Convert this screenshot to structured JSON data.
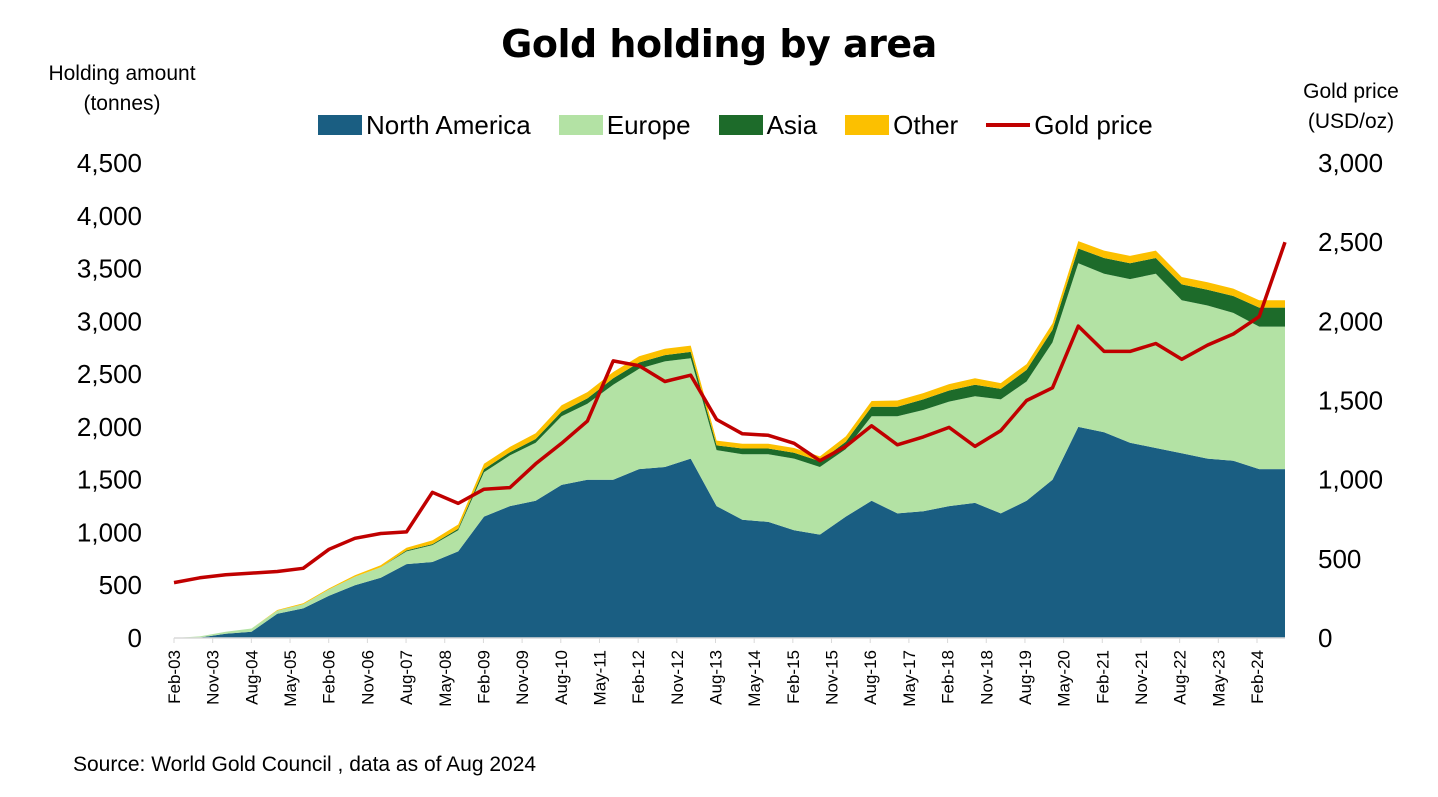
{
  "title": "Gold holding by area",
  "left_axis_title": "Holding amount\n(tonnes)",
  "right_axis_title": "Gold price\n(USD/oz)",
  "source": "Source: World Gold Council , data as of Aug 2024",
  "colors": {
    "north_america": "#1a5e82",
    "europe": "#b3e2a4",
    "asia": "#1d6b2a",
    "other": "#fcc000",
    "gold_price": "#c00000",
    "axis": "#d9d9d9"
  },
  "chart_data": {
    "type": "area",
    "title": "Gold holding by area",
    "ylabel": "Holding amount (tonnes)",
    "y2label": "Gold price (USD/oz)",
    "ylim": [
      0,
      4500
    ],
    "y2lim": [
      0,
      3000
    ],
    "yticks": [
      "0",
      "500",
      "1,000",
      "1,500",
      "2,000",
      "2,500",
      "3,000",
      "3,500",
      "4,000",
      "4,500"
    ],
    "y2ticks": [
      "0",
      "500",
      "1,000",
      "1,500",
      "2,000",
      "2,500",
      "3,000"
    ],
    "xticks": [
      "Feb-03",
      "Nov-03",
      "Aug-04",
      "May-05",
      "Feb-06",
      "Nov-06",
      "Aug-07",
      "May-08",
      "Feb-09",
      "Nov-09",
      "Aug-10",
      "May-11",
      "Feb-12",
      "Nov-12",
      "Aug-13",
      "May-14",
      "Feb-15",
      "Nov-15",
      "Aug-16",
      "May-17",
      "Feb-18",
      "Nov-18",
      "Aug-19",
      "May-20",
      "Feb-21",
      "Nov-21",
      "Aug-22",
      "May-23",
      "Feb-24"
    ],
    "x": [
      "Feb-03",
      "Aug-03",
      "Feb-04",
      "Aug-04",
      "Feb-05",
      "Aug-05",
      "Feb-06",
      "Aug-06",
      "Feb-07",
      "Aug-07",
      "Feb-08",
      "Aug-08",
      "Feb-09",
      "Aug-09",
      "Feb-10",
      "Aug-10",
      "Feb-11",
      "Aug-11",
      "Feb-12",
      "Aug-12",
      "Feb-13",
      "Aug-13",
      "Feb-14",
      "Aug-14",
      "Feb-15",
      "Aug-15",
      "Feb-16",
      "Aug-16",
      "Feb-17",
      "Aug-17",
      "Feb-18",
      "Aug-18",
      "Feb-19",
      "Aug-19",
      "Feb-20",
      "Aug-20",
      "Feb-21",
      "Aug-21",
      "Feb-22",
      "Aug-22",
      "Feb-23",
      "Aug-23",
      "Feb-24",
      "Aug-24"
    ],
    "legend": [
      "North America",
      "Europe",
      "Asia",
      "Other",
      "Gold price"
    ],
    "legend_position": "top",
    "series": [
      {
        "name": "North America",
        "kind": "area",
        "axis": "left",
        "values": [
          0,
          5,
          40,
          60,
          230,
          280,
          400,
          500,
          570,
          700,
          720,
          820,
          1150,
          1250,
          1300,
          1450,
          1500,
          1500,
          1600,
          1620,
          1700,
          1250,
          1120,
          1100,
          1020,
          980,
          1150,
          1300,
          1180,
          1200,
          1250,
          1280,
          1180,
          1300,
          1500,
          2000,
          1950,
          1850,
          1800,
          1750,
          1700,
          1680,
          1600,
          1600
        ]
      },
      {
        "name": "Europe",
        "kind": "area",
        "axis": "left",
        "values": [
          0,
          10,
          20,
          30,
          30,
          40,
          60,
          80,
          100,
          120,
          160,
          200,
          420,
          480,
          550,
          650,
          720,
          900,
          950,
          1000,
          950,
          530,
          620,
          640,
          680,
          640,
          640,
          800,
          920,
          960,
          990,
          1010,
          1080,
          1130,
          1300,
          1550,
          1500,
          1550,
          1650,
          1450,
          1450,
          1400,
          1350,
          1350
        ]
      },
      {
        "name": "Asia",
        "kind": "area",
        "axis": "left",
        "values": [
          0,
          0,
          0,
          0,
          0,
          0,
          0,
          0,
          0,
          10,
          10,
          15,
          30,
          30,
          35,
          45,
          50,
          60,
          60,
          60,
          60,
          45,
          55,
          55,
          55,
          55,
          70,
          90,
          90,
          100,
          105,
          110,
          100,
          110,
          120,
          140,
          150,
          150,
          150,
          150,
          150,
          160,
          180,
          180
        ]
      },
      {
        "name": "Other",
        "kind": "area",
        "axis": "left",
        "values": [
          0,
          0,
          0,
          0,
          5,
          10,
          10,
          15,
          20,
          25,
          35,
          40,
          50,
          50,
          55,
          60,
          60,
          60,
          60,
          60,
          60,
          45,
          45,
          45,
          45,
          45,
          50,
          55,
          60,
          60,
          60,
          60,
          55,
          55,
          60,
          70,
          70,
          70,
          70,
          70,
          70,
          70,
          70,
          70
        ]
      },
      {
        "name": "Gold price",
        "kind": "line",
        "axis": "right",
        "values": [
          350,
          380,
          400,
          410,
          420,
          440,
          560,
          630,
          660,
          670,
          920,
          850,
          940,
          950,
          1100,
          1230,
          1370,
          1750,
          1720,
          1620,
          1660,
          1380,
          1290,
          1280,
          1230,
          1120,
          1210,
          1340,
          1220,
          1270,
          1330,
          1210,
          1310,
          1500,
          1580,
          1970,
          1810,
          1810,
          1860,
          1760,
          1850,
          1920,
          2030,
          2500
        ]
      }
    ]
  }
}
